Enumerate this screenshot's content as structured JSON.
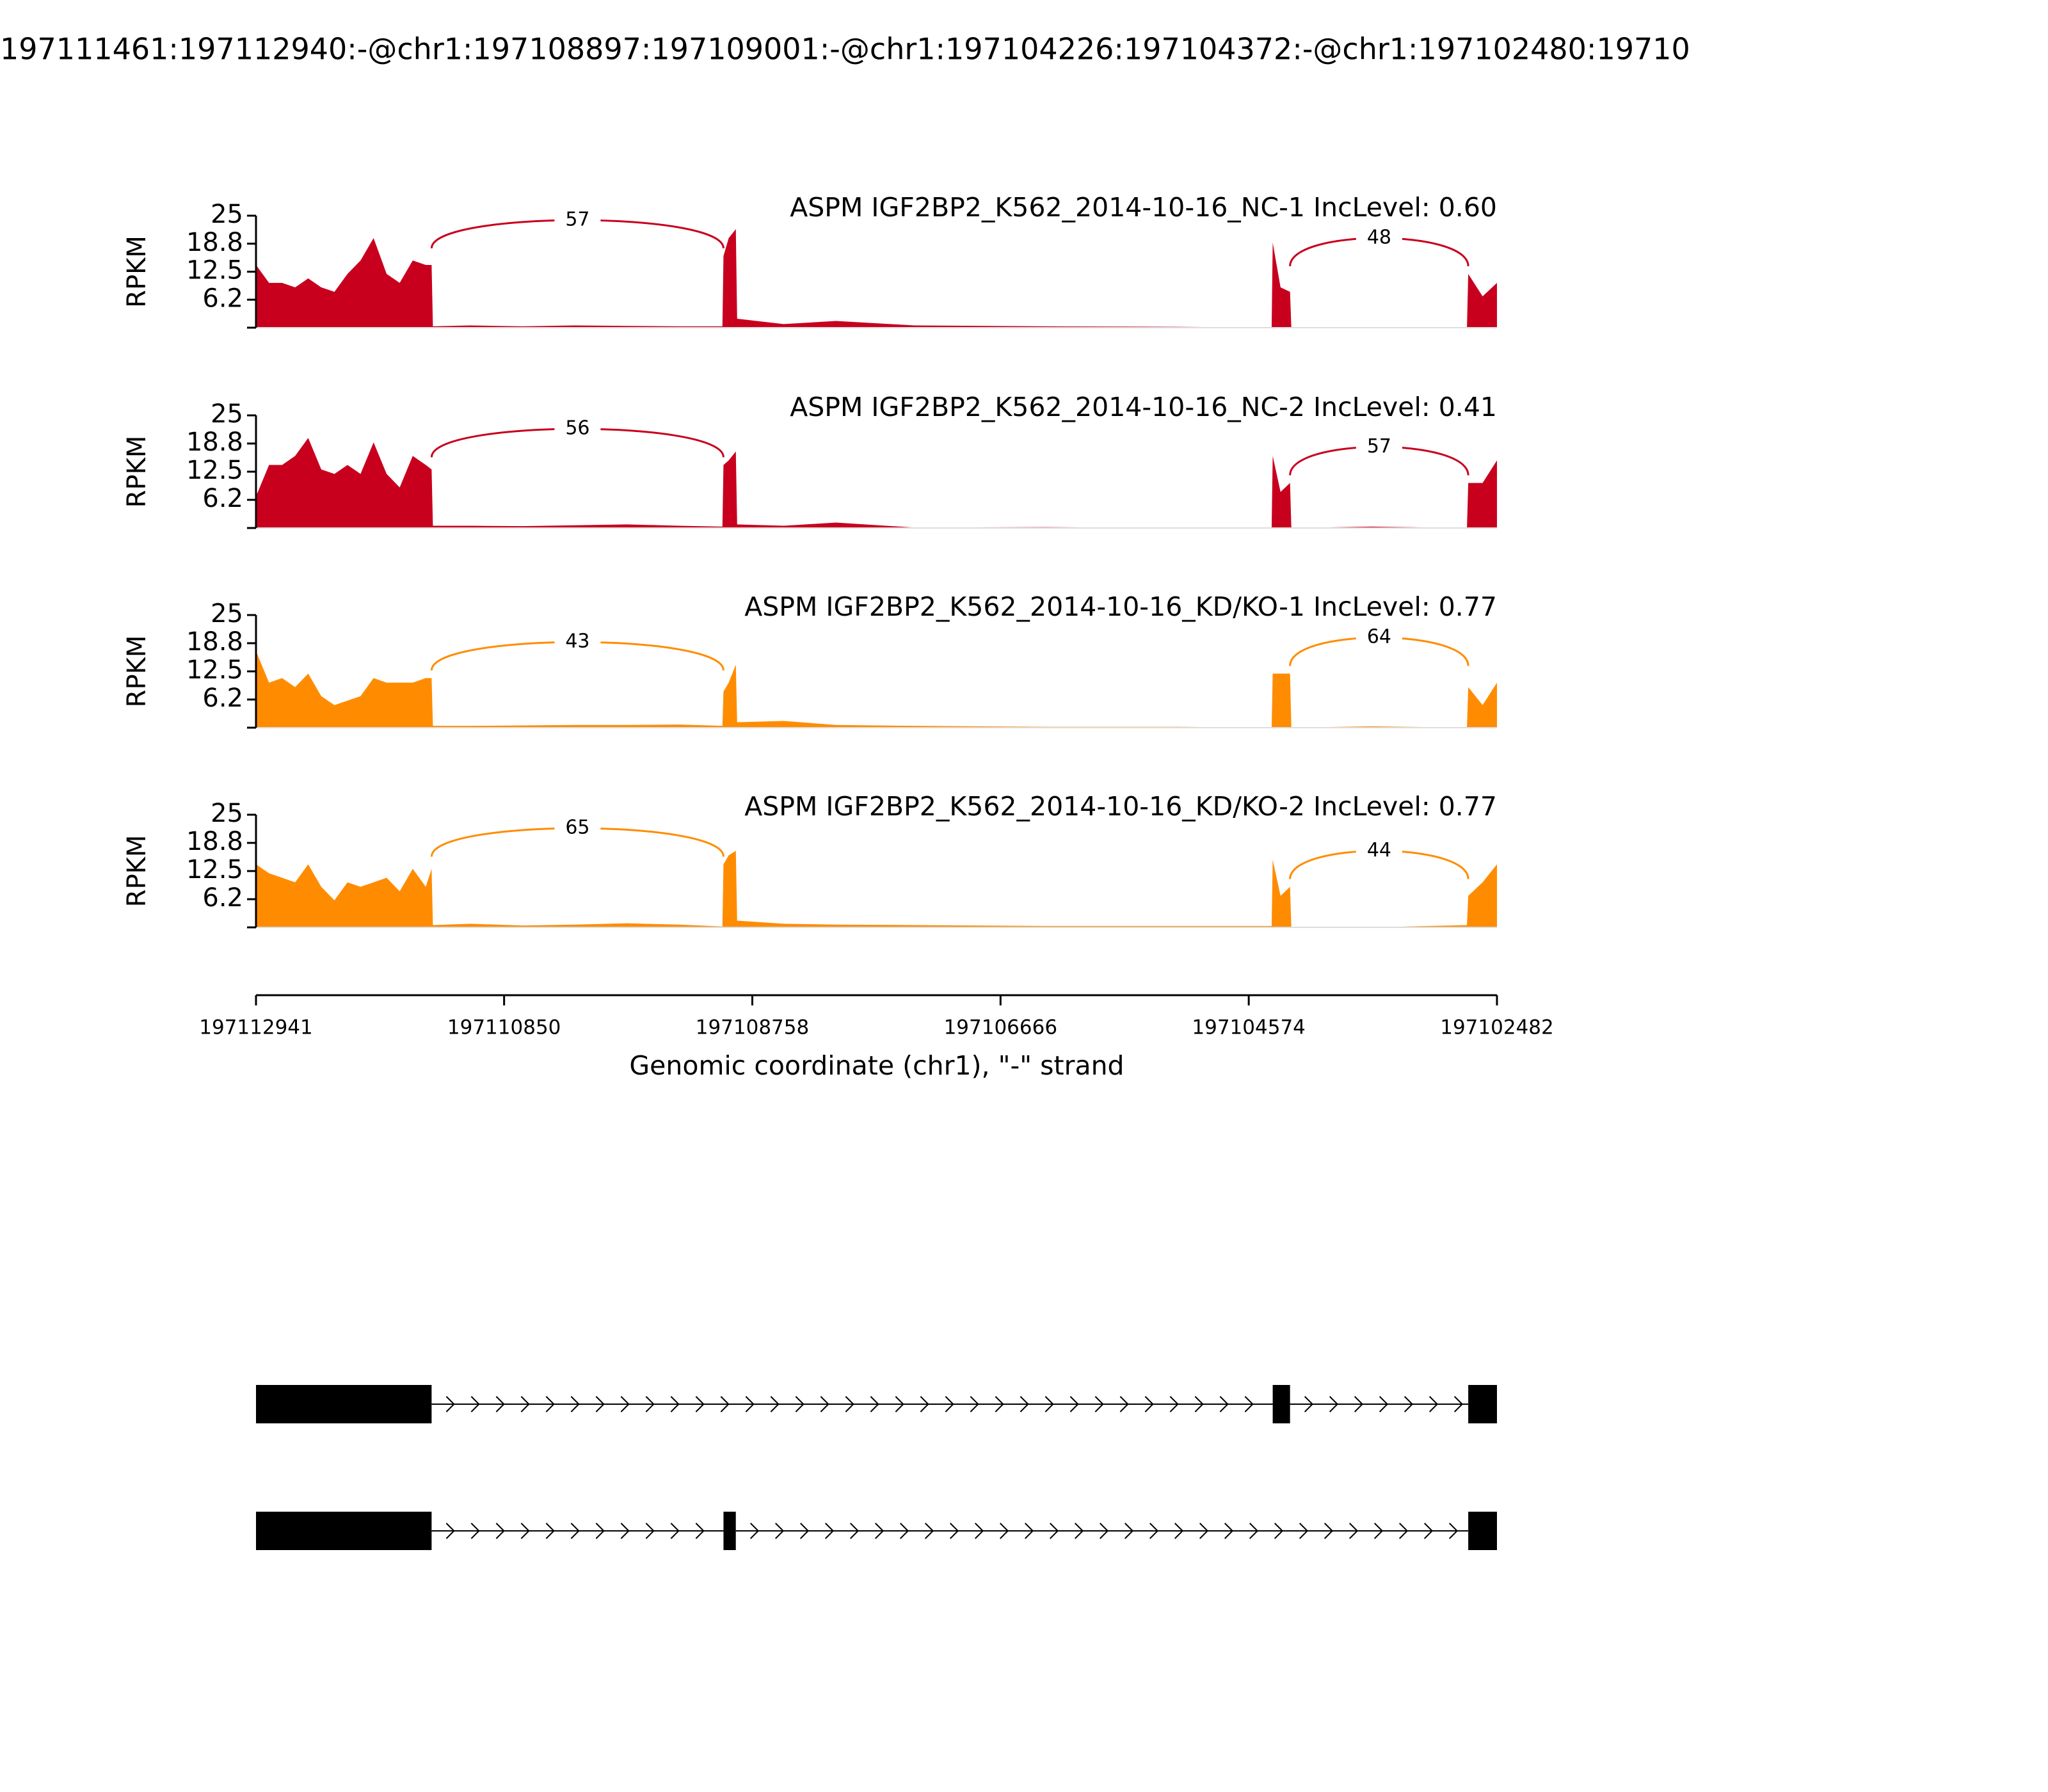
{
  "title": "197111461:197112940:-@chr1:197108897:197109001:-@chr1:197104226:197104372:-@chr1:197102480:19710",
  "x_axis": {
    "label": "Genomic coordinate (chr1), \"-\" strand",
    "xlim": [
      197112941,
      197102482
    ],
    "xticks": [
      197112941,
      197110850,
      197108758,
      197106666,
      197104574,
      197102482
    ]
  },
  "chart_data": [
    {
      "type": "sashimi",
      "label": "ASPM IGF2BP2_K562_2014-10-16_NC-1 IncLevel: 0.60",
      "color": "#c8001e",
      "ylabel": "RPKM",
      "ylim": [
        0,
        25
      ],
      "yticks": [
        {
          "value": 6.25,
          "label": "6.2"
        },
        12.5,
        {
          "value": 18.75,
          "label": "18.8"
        },
        25
      ],
      "x": [
        197112941,
        197112831,
        197112721,
        197112611,
        197112501,
        197112391,
        197112280,
        197112170,
        197112060,
        197111950,
        197111840,
        197111730,
        197111620,
        197111510,
        197111461,
        197111450,
        197111135,
        197110695,
        197110255,
        197109814,
        197109374,
        197109010,
        197109001,
        197108957,
        197108897,
        197108886,
        197108493,
        197108053,
        197107392,
        197106291,
        197105190,
        197104381,
        197104372,
        197104306,
        197104226,
        197104215,
        197103538,
        197102735,
        197102724,
        197102603,
        197102482
      ],
      "values": [
        14,
        10,
        10,
        9,
        11,
        9,
        8,
        12,
        15,
        20,
        12,
        10,
        15,
        14,
        14,
        0.3,
        0.5,
        0.3,
        0.5,
        0.4,
        0.3,
        0.3,
        16,
        20,
        22,
        2,
        0.8,
        1.5,
        0.5,
        0.3,
        0.2,
        0,
        19,
        9,
        8,
        0,
        0,
        0,
        12,
        7,
        10
      ],
      "junctions": [
        {
          "from": 197111461,
          "to": 197109001,
          "count": 57
        },
        {
          "from": 197104226,
          "to": 197102724,
          "count": 48
        }
      ]
    },
    {
      "type": "sashimi",
      "label": "ASPM IGF2BP2_K562_2014-10-16_NC-2 IncLevel: 0.41",
      "color": "#c8001e",
      "ylabel": "RPKM",
      "ylim": [
        0,
        25
      ],
      "yticks": [
        {
          "value": 6.25,
          "label": "6.2"
        },
        12.5,
        {
          "value": 18.75,
          "label": "18.8"
        },
        25
      ],
      "x": [
        197112941,
        197112831,
        197112721,
        197112611,
        197112501,
        197112391,
        197112280,
        197112170,
        197112060,
        197111950,
        197111840,
        197111730,
        197111620,
        197111510,
        197111461,
        197111450,
        197111135,
        197110695,
        197110255,
        197109814,
        197109374,
        197109010,
        197109001,
        197108957,
        197108897,
        197108886,
        197108493,
        197108053,
        197107392,
        197106291,
        197105190,
        197104381,
        197104372,
        197104306,
        197104226,
        197104215,
        197103538,
        197102735,
        197102724,
        197102603,
        197102482
      ],
      "values": [
        7,
        14,
        14,
        16,
        20,
        13,
        12,
        14,
        12,
        19,
        12,
        9,
        16,
        14,
        13,
        0.5,
        0.5,
        0.4,
        0.6,
        0.8,
        0.5,
        0.3,
        14,
        15,
        17,
        0.8,
        0.5,
        1.2,
        0.1,
        0.2,
        0,
        0,
        16,
        8,
        10,
        0,
        0.3,
        0,
        10,
        10,
        15
      ],
      "junctions": [
        {
          "from": 197111461,
          "to": 197109001,
          "count": 56
        },
        {
          "from": 197104226,
          "to": 197102724,
          "count": 57
        }
      ]
    },
    {
      "type": "sashimi",
      "label": "ASPM IGF2BP2_K562_2014-10-16_KD/KO-1 IncLevel: 0.77",
      "color": "#ff8c00",
      "ylabel": "RPKM",
      "ylim": [
        0,
        25
      ],
      "yticks": [
        {
          "value": 6.25,
          "label": "6.2"
        },
        12.5,
        {
          "value": 18.75,
          "label": "18.8"
        },
        25
      ],
      "x": [
        197112941,
        197112831,
        197112721,
        197112611,
        197112501,
        197112391,
        197112280,
        197112170,
        197112060,
        197111950,
        197111840,
        197111730,
        197111620,
        197111510,
        197111461,
        197111450,
        197111135,
        197110695,
        197110255,
        197109814,
        197109374,
        197109010,
        197109001,
        197108957,
        197108897,
        197108886,
        197108493,
        197108053,
        197107392,
        197106291,
        197105190,
        197104381,
        197104372,
        197104306,
        197104226,
        197104215,
        197103538,
        197102735,
        197102724,
        197102603,
        197102482
      ],
      "values": [
        17,
        10,
        11,
        9,
        12,
        7,
        5,
        6,
        7,
        11,
        10,
        10,
        10,
        11,
        11,
        0.4,
        0.4,
        0.5,
        0.6,
        0.6,
        0.7,
        0.4,
        8,
        10,
        14,
        1.2,
        1.5,
        0.6,
        0.4,
        0.2,
        0.2,
        0,
        12,
        12,
        12,
        0,
        0.3,
        0,
        9,
        5,
        10
      ],
      "junctions": [
        {
          "from": 197111461,
          "to": 197109001,
          "count": 43
        },
        {
          "from": 197104226,
          "to": 197102724,
          "count": 64
        }
      ]
    },
    {
      "type": "sashimi",
      "label": "ASPM IGF2BP2_K562_2014-10-16_KD/KO-2 IncLevel: 0.77",
      "color": "#ff8c00",
      "ylabel": "RPKM",
      "ylim": [
        0,
        25
      ],
      "yticks": [
        {
          "value": 6.25,
          "label": "6.2"
        },
        12.5,
        {
          "value": 18.75,
          "label": "18.8"
        },
        25
      ],
      "x": [
        197112941,
        197112831,
        197112721,
        197112611,
        197112501,
        197112391,
        197112280,
        197112170,
        197112060,
        197111950,
        197111840,
        197111730,
        197111620,
        197111510,
        197111461,
        197111450,
        197111135,
        197110695,
        197110255,
        197109814,
        197109374,
        197109010,
        197109001,
        197108957,
        197108897,
        197108886,
        197108493,
        197108053,
        197107392,
        197106291,
        197105190,
        197104381,
        197104372,
        197104306,
        197104226,
        197104215,
        197103538,
        197102735,
        197102724,
        197102603,
        197102482
      ],
      "values": [
        14,
        12,
        11,
        10,
        14,
        9,
        6,
        10,
        9,
        10,
        11,
        8,
        13,
        9,
        13,
        0.5,
        0.8,
        0.4,
        0.6,
        0.9,
        0.6,
        0.2,
        14,
        16,
        17,
        1.5,
        0.8,
        0.6,
        0.5,
        0.3,
        0.3,
        0.3,
        15,
        7,
        9,
        0,
        0,
        0.5,
        7,
        10,
        14
      ],
      "junctions": [
        {
          "from": 197111461,
          "to": 197109001,
          "count": 65
        },
        {
          "from": 197104226,
          "to": 197102724,
          "count": 44
        }
      ]
    }
  ],
  "transcripts": [
    {
      "exons": [
        [
          197112941,
          197111461
        ],
        [
          197104372,
          197104226
        ],
        [
          197102724,
          197102482
        ]
      ]
    },
    {
      "exons": [
        [
          197112941,
          197111461
        ],
        [
          197109001,
          197108897
        ],
        [
          197102724,
          197102482
        ]
      ]
    }
  ]
}
